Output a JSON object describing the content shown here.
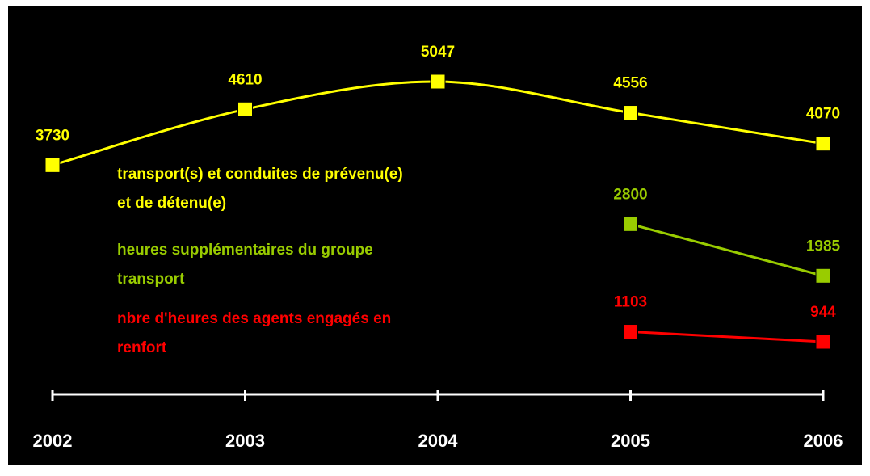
{
  "chart_data": {
    "type": "line",
    "categories": [
      "2002",
      "2003",
      "2004",
      "2005",
      "2006"
    ],
    "series": [
      {
        "name": "transport(s) et conduites de prévenu(e) et de détenu(e)",
        "color": "#ffff00",
        "values": [
          3730,
          4610,
          5047,
          4556,
          4070
        ]
      },
      {
        "name": "heures supplémentaires du groupe transport",
        "color": "#99cc00",
        "values": [
          null,
          null,
          null,
          2800,
          1985
        ]
      },
      {
        "name": "nbre d'heures des agents engagés en renfort",
        "color": "#ff0000",
        "values": [
          null,
          null,
          null,
          1103,
          944
        ]
      }
    ],
    "smooth": true
  }
}
